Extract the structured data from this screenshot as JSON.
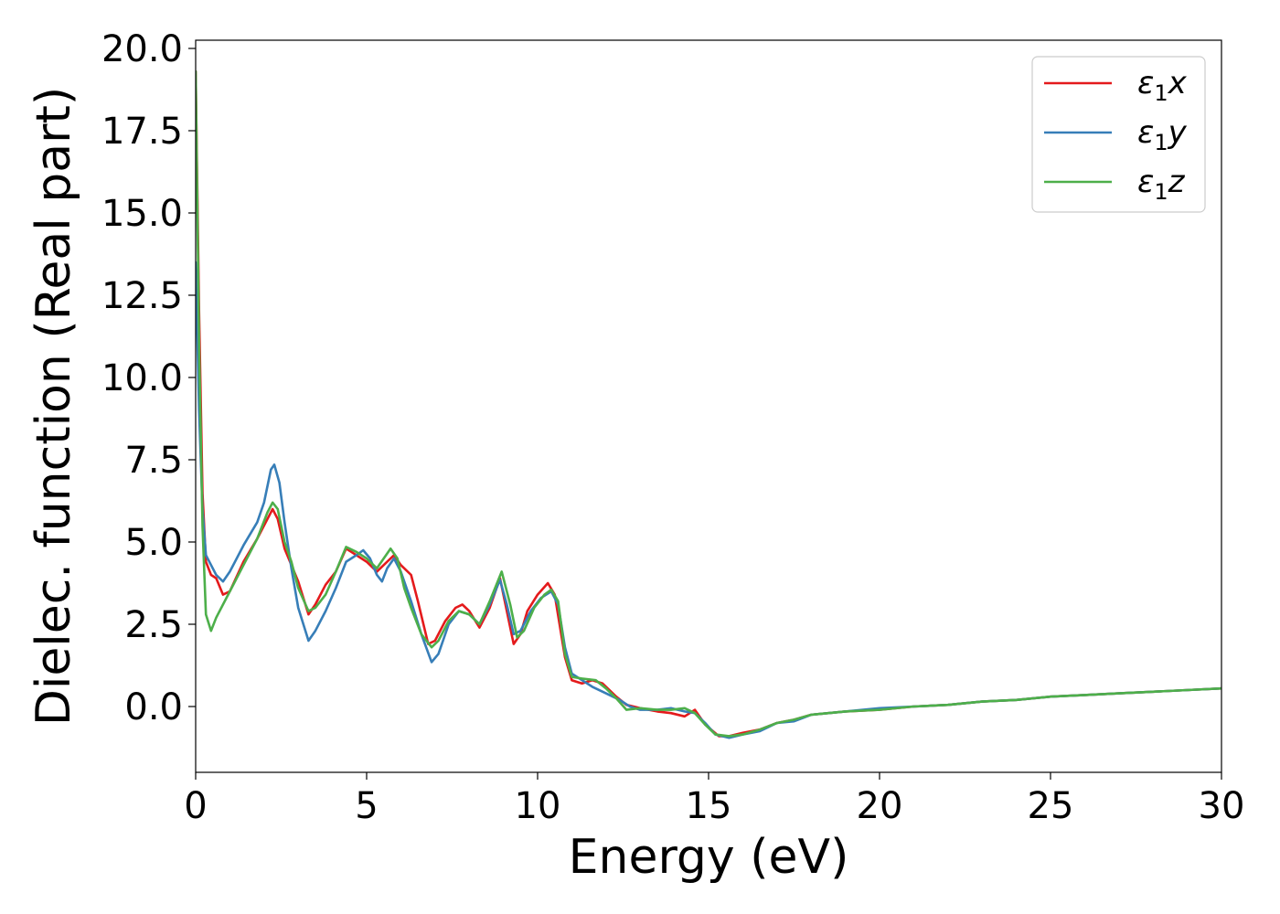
{
  "chart_data": {
    "type": "line",
    "xlabel": "Energy (eV)",
    "ylabel": "Dielec. function (Real part)",
    "xlim": [
      0,
      30
    ],
    "ylim": [
      -2.0,
      20.25
    ],
    "x_ticks": [
      0,
      5,
      10,
      15,
      20,
      25,
      30
    ],
    "x_tick_labels": [
      "0",
      "5",
      "10",
      "15",
      "20",
      "25",
      "30"
    ],
    "y_ticks": [
      0.0,
      2.5,
      5.0,
      7.5,
      10.0,
      12.5,
      15.0,
      17.5,
      20.0
    ],
    "y_tick_labels": [
      "0.0",
      "2.5",
      "5.0",
      "7.5",
      "10.0",
      "12.5",
      "15.0",
      "17.5",
      "20.0"
    ],
    "grid": false,
    "legend_position": "top-right",
    "series": [
      {
        "name": "ε₁x",
        "legend_base": "ε",
        "legend_sub": "1",
        "legend_var": "x",
        "color": "#e41a1c",
        "points": [
          [
            0,
            19.3
          ],
          [
            0.1,
            12.0
          ],
          [
            0.2,
            6.5
          ],
          [
            0.3,
            4.4
          ],
          [
            0.45,
            4.0
          ],
          [
            0.6,
            3.9
          ],
          [
            0.8,
            3.4
          ],
          [
            1.0,
            3.5
          ],
          [
            1.4,
            4.4
          ],
          [
            1.8,
            5.1
          ],
          [
            2.1,
            5.7
          ],
          [
            2.25,
            6.0
          ],
          [
            2.4,
            5.7
          ],
          [
            2.6,
            4.8
          ],
          [
            2.8,
            4.3
          ],
          [
            3.0,
            3.8
          ],
          [
            3.3,
            2.8
          ],
          [
            3.5,
            3.1
          ],
          [
            3.8,
            3.7
          ],
          [
            4.1,
            4.1
          ],
          [
            4.4,
            4.8
          ],
          [
            4.7,
            4.6
          ],
          [
            5.0,
            4.4
          ],
          [
            5.3,
            4.1
          ],
          [
            5.5,
            4.3
          ],
          [
            5.8,
            4.6
          ],
          [
            6.0,
            4.3
          ],
          [
            6.3,
            4.0
          ],
          [
            6.5,
            3.2
          ],
          [
            6.8,
            1.9
          ],
          [
            7.0,
            2.0
          ],
          [
            7.3,
            2.6
          ],
          [
            7.6,
            3.0
          ],
          [
            7.8,
            3.1
          ],
          [
            8.0,
            2.9
          ],
          [
            8.3,
            2.4
          ],
          [
            8.6,
            3.0
          ],
          [
            8.9,
            3.9
          ],
          [
            9.1,
            2.9
          ],
          [
            9.3,
            1.9
          ],
          [
            9.5,
            2.2
          ],
          [
            9.7,
            2.9
          ],
          [
            10.0,
            3.4
          ],
          [
            10.3,
            3.75
          ],
          [
            10.5,
            3.4
          ],
          [
            10.8,
            1.5
          ],
          [
            11.0,
            0.8
          ],
          [
            11.3,
            0.7
          ],
          [
            11.6,
            0.8
          ],
          [
            11.9,
            0.7
          ],
          [
            12.3,
            0.3
          ],
          [
            12.6,
            0.05
          ],
          [
            13.0,
            -0.05
          ],
          [
            13.5,
            -0.15
          ],
          [
            13.9,
            -0.2
          ],
          [
            14.3,
            -0.3
          ],
          [
            14.6,
            -0.1
          ],
          [
            14.9,
            -0.55
          ],
          [
            15.3,
            -0.9
          ],
          [
            15.6,
            -0.9
          ],
          [
            16.0,
            -0.8
          ],
          [
            16.5,
            -0.7
          ],
          [
            17.0,
            -0.5
          ],
          [
            17.5,
            -0.4
          ],
          [
            18.0,
            -0.25
          ],
          [
            19.0,
            -0.15
          ],
          [
            20.0,
            -0.1
          ],
          [
            21.0,
            0.0
          ],
          [
            22.0,
            0.05
          ],
          [
            23.0,
            0.15
          ],
          [
            24.0,
            0.2
          ],
          [
            25.0,
            0.3
          ],
          [
            26.0,
            0.35
          ],
          [
            27.0,
            0.4
          ],
          [
            28.0,
            0.45
          ],
          [
            29.0,
            0.5
          ],
          [
            30.0,
            0.55
          ]
        ]
      },
      {
        "name": "ε₁y",
        "legend_base": "ε",
        "legend_sub": "1",
        "legend_var": "y",
        "color": "#377eb8",
        "points": [
          [
            0,
            13.5
          ],
          [
            0.1,
            9.0
          ],
          [
            0.2,
            6.0
          ],
          [
            0.3,
            4.6
          ],
          [
            0.45,
            4.3
          ],
          [
            0.6,
            4.0
          ],
          [
            0.8,
            3.8
          ],
          [
            1.0,
            4.1
          ],
          [
            1.4,
            4.9
          ],
          [
            1.8,
            5.6
          ],
          [
            2.0,
            6.2
          ],
          [
            2.2,
            7.2
          ],
          [
            2.3,
            7.35
          ],
          [
            2.45,
            6.8
          ],
          [
            2.6,
            5.6
          ],
          [
            2.8,
            4.2
          ],
          [
            3.0,
            3.0
          ],
          [
            3.3,
            2.0
          ],
          [
            3.5,
            2.3
          ],
          [
            3.8,
            2.9
          ],
          [
            4.1,
            3.6
          ],
          [
            4.4,
            4.4
          ],
          [
            4.7,
            4.6
          ],
          [
            4.9,
            4.75
          ],
          [
            5.1,
            4.5
          ],
          [
            5.3,
            4.0
          ],
          [
            5.45,
            3.8
          ],
          [
            5.6,
            4.2
          ],
          [
            5.8,
            4.5
          ],
          [
            6.0,
            4.1
          ],
          [
            6.3,
            3.2
          ],
          [
            6.6,
            2.2
          ],
          [
            6.9,
            1.35
          ],
          [
            7.1,
            1.6
          ],
          [
            7.4,
            2.5
          ],
          [
            7.7,
            2.9
          ],
          [
            8.0,
            2.8
          ],
          [
            8.3,
            2.5
          ],
          [
            8.6,
            3.1
          ],
          [
            8.9,
            3.85
          ],
          [
            9.1,
            3.1
          ],
          [
            9.3,
            2.2
          ],
          [
            9.5,
            2.3
          ],
          [
            9.8,
            2.9
          ],
          [
            10.1,
            3.3
          ],
          [
            10.4,
            3.5
          ],
          [
            10.6,
            3.1
          ],
          [
            10.8,
            1.8
          ],
          [
            11.0,
            1.0
          ],
          [
            11.3,
            0.8
          ],
          [
            11.6,
            0.6
          ],
          [
            12.0,
            0.4
          ],
          [
            12.4,
            0.2
          ],
          [
            12.7,
            0.0
          ],
          [
            13.0,
            -0.1
          ],
          [
            13.5,
            -0.1
          ],
          [
            13.9,
            -0.05
          ],
          [
            14.3,
            -0.15
          ],
          [
            14.6,
            -0.2
          ],
          [
            14.9,
            -0.5
          ],
          [
            15.2,
            -0.85
          ],
          [
            15.6,
            -0.95
          ],
          [
            16.0,
            -0.85
          ],
          [
            16.5,
            -0.75
          ],
          [
            17.0,
            -0.5
          ],
          [
            17.5,
            -0.45
          ],
          [
            18.0,
            -0.25
          ],
          [
            19.0,
            -0.15
          ],
          [
            20.0,
            -0.05
          ],
          [
            21.0,
            0.0
          ],
          [
            22.0,
            0.05
          ],
          [
            23.0,
            0.15
          ],
          [
            24.0,
            0.2
          ],
          [
            25.0,
            0.3
          ],
          [
            26.0,
            0.35
          ],
          [
            27.0,
            0.4
          ],
          [
            28.0,
            0.45
          ],
          [
            29.0,
            0.5
          ],
          [
            30.0,
            0.55
          ]
        ]
      },
      {
        "name": "ε₁z",
        "legend_base": "ε",
        "legend_sub": "1",
        "legend_var": "z",
        "color": "#4daf4a",
        "points": [
          [
            0,
            19.3
          ],
          [
            0.1,
            11.0
          ],
          [
            0.2,
            5.5
          ],
          [
            0.3,
            2.8
          ],
          [
            0.45,
            2.3
          ],
          [
            0.6,
            2.7
          ],
          [
            0.8,
            3.1
          ],
          [
            1.0,
            3.5
          ],
          [
            1.4,
            4.3
          ],
          [
            1.8,
            5.1
          ],
          [
            2.1,
            5.9
          ],
          [
            2.25,
            6.2
          ],
          [
            2.4,
            6.0
          ],
          [
            2.6,
            5.0
          ],
          [
            2.8,
            4.4
          ],
          [
            3.0,
            3.6
          ],
          [
            3.3,
            2.9
          ],
          [
            3.5,
            3.0
          ],
          [
            3.8,
            3.4
          ],
          [
            4.1,
            4.1
          ],
          [
            4.4,
            4.85
          ],
          [
            4.7,
            4.7
          ],
          [
            5.0,
            4.5
          ],
          [
            5.3,
            4.2
          ],
          [
            5.5,
            4.5
          ],
          [
            5.7,
            4.8
          ],
          [
            5.9,
            4.5
          ],
          [
            6.1,
            3.6
          ],
          [
            6.3,
            3.0
          ],
          [
            6.6,
            2.2
          ],
          [
            6.9,
            1.8
          ],
          [
            7.1,
            2.0
          ],
          [
            7.4,
            2.6
          ],
          [
            7.7,
            2.9
          ],
          [
            8.0,
            2.8
          ],
          [
            8.3,
            2.5
          ],
          [
            8.6,
            3.2
          ],
          [
            8.95,
            4.1
          ],
          [
            9.2,
            3.1
          ],
          [
            9.4,
            2.1
          ],
          [
            9.6,
            2.3
          ],
          [
            9.9,
            3.0
          ],
          [
            10.2,
            3.4
          ],
          [
            10.4,
            3.55
          ],
          [
            10.6,
            3.2
          ],
          [
            10.8,
            1.6
          ],
          [
            11.0,
            0.9
          ],
          [
            11.3,
            0.85
          ],
          [
            11.7,
            0.8
          ],
          [
            12.0,
            0.55
          ],
          [
            12.3,
            0.25
          ],
          [
            12.6,
            -0.1
          ],
          [
            13.0,
            -0.05
          ],
          [
            13.5,
            -0.1
          ],
          [
            13.9,
            -0.1
          ],
          [
            14.3,
            -0.05
          ],
          [
            14.6,
            -0.2
          ],
          [
            14.9,
            -0.55
          ],
          [
            15.2,
            -0.85
          ],
          [
            15.6,
            -0.9
          ],
          [
            16.0,
            -0.85
          ],
          [
            16.5,
            -0.7
          ],
          [
            17.0,
            -0.5
          ],
          [
            17.5,
            -0.4
          ],
          [
            18.0,
            -0.25
          ],
          [
            19.0,
            -0.15
          ],
          [
            20.0,
            -0.1
          ],
          [
            21.0,
            0.0
          ],
          [
            22.0,
            0.05
          ],
          [
            23.0,
            0.15
          ],
          [
            24.0,
            0.2
          ],
          [
            25.0,
            0.3
          ],
          [
            26.0,
            0.35
          ],
          [
            27.0,
            0.4
          ],
          [
            28.0,
            0.45
          ],
          [
            29.0,
            0.5
          ],
          [
            30.0,
            0.55
          ]
        ]
      }
    ]
  }
}
